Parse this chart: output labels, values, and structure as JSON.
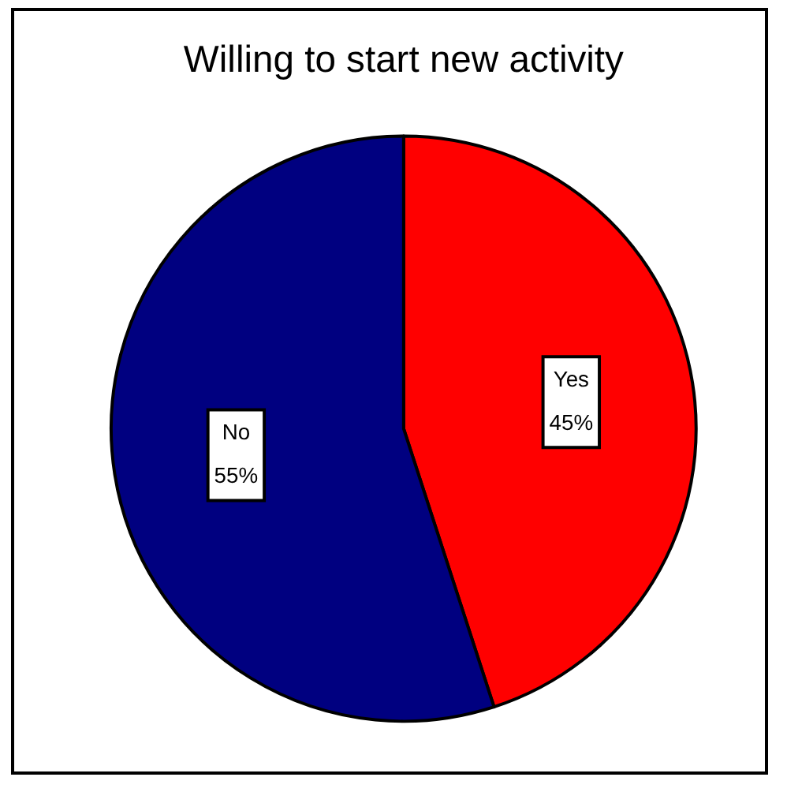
{
  "chart_data": {
    "type": "pie",
    "title": "Willing to start new activity",
    "categories": [
      "Yes",
      "No"
    ],
    "values": [
      45,
      55
    ],
    "colors": [
      "#ff0000",
      "#000080"
    ],
    "value_labels": [
      "45%",
      "55%"
    ]
  }
}
